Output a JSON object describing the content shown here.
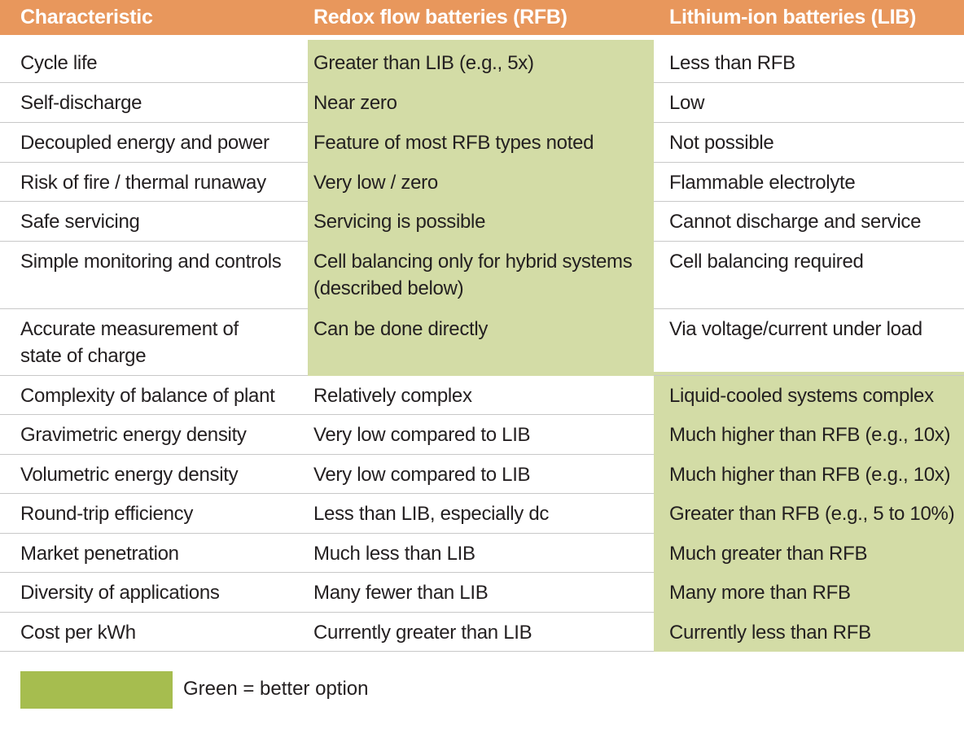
{
  "colors": {
    "header_bg": "#e8975c",
    "better_cell_bg": "#d3dca6",
    "legend_swatch": "#a6bd4f"
  },
  "headers": {
    "characteristic": "Characteristic",
    "rfb": "Redox flow batteries (RFB)",
    "lib": "Lithium-ion batteries (LIB)"
  },
  "rows": [
    {
      "characteristic": "Cycle life",
      "rfb": "Greater than LIB (e.g., 5x)",
      "lib": "Less than RFB",
      "better": "rfb"
    },
    {
      "characteristic": "Self-discharge",
      "rfb": "Near zero",
      "lib": "Low",
      "better": "rfb"
    },
    {
      "characteristic": "Decoupled energy and power",
      "rfb": "Feature of most RFB types noted",
      "lib": "Not possible",
      "better": "rfb"
    },
    {
      "characteristic": "Risk of fire / thermal runaway",
      "rfb": "Very low / zero",
      "lib": "Flammable electrolyte",
      "better": "rfb"
    },
    {
      "characteristic": "Safe servicing",
      "rfb": "Servicing is possible",
      "lib": "Cannot discharge and service",
      "better": "rfb"
    },
    {
      "characteristic": "Simple monitoring and controls",
      "rfb": "Cell balancing only for hybrid systems\n(described below)",
      "lib": "Cell balancing required",
      "better": "rfb"
    },
    {
      "characteristic": "Accurate measurement of\nstate of charge",
      "rfb": "Can be done directly",
      "lib": "Via voltage/current under load",
      "better": "rfb"
    },
    {
      "characteristic": "Complexity of balance of plant",
      "rfb": "Relatively complex",
      "lib": "Liquid-cooled systems complex",
      "better": "lib"
    },
    {
      "characteristic": "Gravimetric energy density",
      "rfb": "Very low compared to LIB",
      "lib": "Much higher than RFB (e.g., 10x)",
      "better": "lib"
    },
    {
      "characteristic": "Volumetric energy density",
      "rfb": "Very low compared to LIB",
      "lib": "Much higher than RFB (e.g., 10x)",
      "better": "lib"
    },
    {
      "characteristic": "Round-trip efficiency",
      "rfb": "Less than LIB, especially dc",
      "lib": "Greater than RFB (e.g., 5 to 10%)",
      "better": "lib"
    },
    {
      "characteristic": "Market penetration",
      "rfb": "Much less than LIB",
      "lib": "Much greater than RFB",
      "better": "lib"
    },
    {
      "characteristic": "Diversity of applications",
      "rfb": "Many fewer than LIB",
      "lib": "Many more than RFB",
      "better": "lib"
    },
    {
      "characteristic": "Cost per kWh",
      "rfb": "Currently greater than LIB",
      "lib": "Currently less than RFB",
      "better": "lib"
    }
  ],
  "legend": {
    "label": "Green = better option"
  }
}
